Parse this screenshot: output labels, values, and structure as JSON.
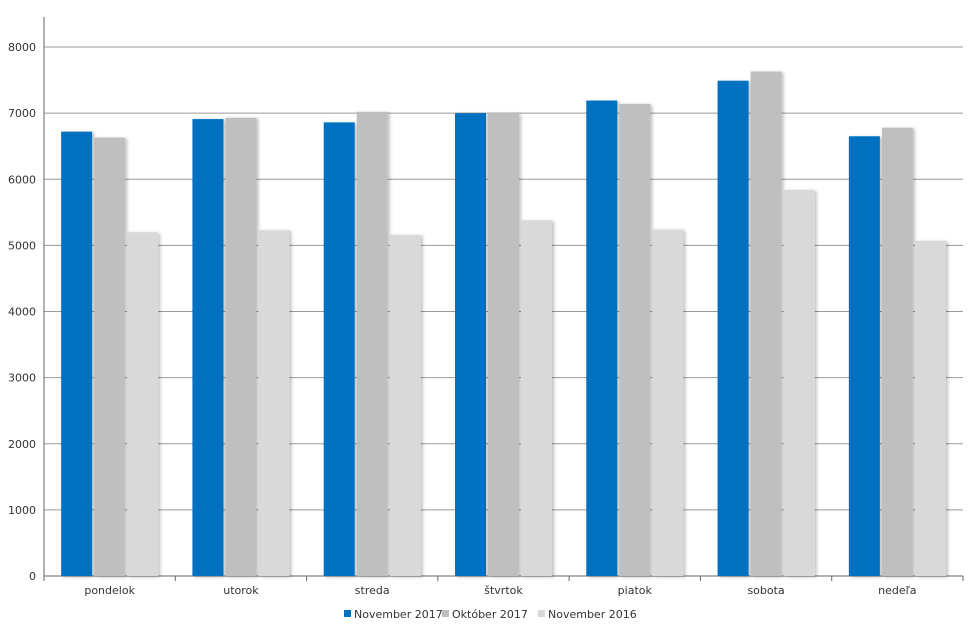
{
  "chart_data": {
    "type": "bar",
    "categories": [
      "pondelok",
      "utorok",
      "streda",
      "štvrtok",
      "piatok",
      "sobota",
      "nedeľa"
    ],
    "series": [
      {
        "name": "November 2017",
        "color": "#0070c0",
        "values": [
          6720,
          6910,
          6860,
          7000,
          7190,
          7490,
          6650
        ]
      },
      {
        "name": "Október 2017",
        "color": "#bfbfbf",
        "values": [
          6630,
          6930,
          7020,
          7000,
          7140,
          7630,
          6780
        ]
      },
      {
        "name": "November 2016",
        "color": "#d9d9d9",
        "values": [
          5200,
          5230,
          5160,
          5380,
          5240,
          5840,
          5070
        ]
      }
    ],
    "y_ticks": [
      "0",
      "1000",
      "2000",
      "3000",
      "4000",
      "5000",
      "6000",
      "7000",
      "8000"
    ],
    "ylim": [
      0,
      8000
    ],
    "grid": true,
    "legend_position": "bottom-center"
  }
}
